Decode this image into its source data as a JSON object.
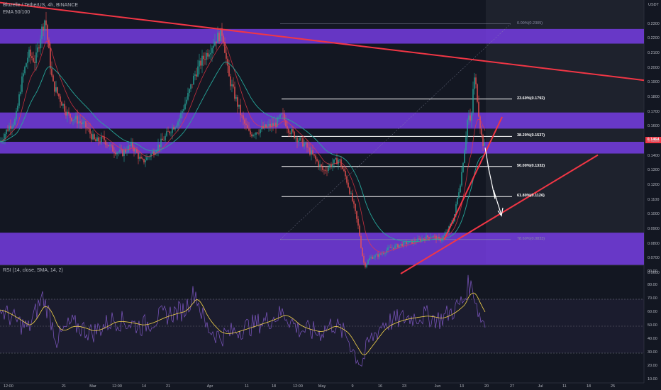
{
  "header": {
    "symbol_line": "Bluzelle / TetherUS, 4h, BINANCE",
    "indicator_line": "EMA 50/100",
    "currency": "USDT"
  },
  "price_tag": "0.1464",
  "rsi_legend": "RSI (14, close, SMA, 14, 2)",
  "colors": {
    "background": "#131722",
    "future_area": "#1e222d",
    "zone": "#7e3ff2",
    "trendline": "#f23645",
    "ema_fast": "#f23645",
    "ema_slow": "#26a69a",
    "rsi": "#7e57c2",
    "rsi_ma": "#f7d64a"
  },
  "chart_data": [
    {
      "type": "candlestick",
      "title": "Bluzelle / TetherUS, 4h, BINANCE",
      "ylim": [
        0.06,
        0.24
      ],
      "y_ticks": [
        "0.2300",
        "0.2200",
        "0.2100",
        "0.2000",
        "0.1900",
        "0.1800",
        "0.1700",
        "0.1600",
        "0.1500",
        "0.1400",
        "0.1300",
        "0.1200",
        "0.1100",
        "0.1000",
        "0.0900",
        "0.0800",
        "0.0700",
        "0.0600"
      ],
      "x_ticks": [
        "12:00",
        "21",
        "Mar",
        "12:00",
        "14",
        "21",
        "Apr",
        "11",
        "18",
        "12:00",
        "May",
        "9",
        "16",
        "23",
        "Jun",
        "13",
        "20",
        "27",
        "Jul",
        "11",
        "18",
        "25"
      ],
      "price_path": [
        [
          0,
          0.15
        ],
        [
          12,
          0.16
        ],
        [
          22,
          0.165
        ],
        [
          30,
          0.19
        ],
        [
          40,
          0.21
        ],
        [
          50,
          0.205
        ],
        [
          58,
          0.225
        ],
        [
          64,
          0.235
        ],
        [
          68,
          0.215
        ],
        [
          74,
          0.19
        ],
        [
          84,
          0.18
        ],
        [
          96,
          0.168
        ],
        [
          108,
          0.165
        ],
        [
          122,
          0.16
        ],
        [
          134,
          0.15
        ],
        [
          146,
          0.152
        ],
        [
          158,
          0.145
        ],
        [
          172,
          0.142
        ],
        [
          186,
          0.148
        ],
        [
          200,
          0.136
        ],
        [
          214,
          0.142
        ],
        [
          228,
          0.15
        ],
        [
          240,
          0.158
        ],
        [
          252,
          0.165
        ],
        [
          264,
          0.18
        ],
        [
          274,
          0.195
        ],
        [
          284,
          0.205
        ],
        [
          294,
          0.212
        ],
        [
          304,
          0.22
        ],
        [
          314,
          0.225
        ],
        [
          322,
          0.195
        ],
        [
          332,
          0.18
        ],
        [
          342,
          0.165
        ],
        [
          352,
          0.155
        ],
        [
          364,
          0.158
        ],
        [
          376,
          0.16
        ],
        [
          388,
          0.162
        ],
        [
          398,
          0.168
        ],
        [
          408,
          0.158
        ],
        [
          420,
          0.152
        ],
        [
          430,
          0.148
        ],
        [
          442,
          0.14
        ],
        [
          456,
          0.13
        ],
        [
          468,
          0.135
        ],
        [
          478,
          0.138
        ],
        [
          488,
          0.125
        ],
        [
          498,
          0.108
        ],
        [
          506,
          0.09
        ],
        [
          510,
          0.075
        ],
        [
          514,
          0.065
        ],
        [
          522,
          0.071
        ],
        [
          536,
          0.073
        ],
        [
          548,
          0.077
        ],
        [
          560,
          0.079
        ],
        [
          572,
          0.081
        ],
        [
          584,
          0.082
        ],
        [
          596,
          0.084
        ],
        [
          608,
          0.086
        ],
        [
          620,
          0.083
        ],
        [
          630,
          0.088
        ],
        [
          640,
          0.098
        ],
        [
          650,
          0.125
        ],
        [
          656,
          0.15
        ],
        [
          660,
          0.17
        ],
        [
          664,
          0.16
        ],
        [
          668,
          0.195
        ],
        [
          672,
          0.185
        ],
        [
          676,
          0.165
        ],
        [
          680,
          0.15
        ],
        [
          684,
          0.146
        ]
      ],
      "zones": [
        {
          "from": 0.217,
          "to": 0.227
        },
        {
          "from": 0.159,
          "to": 0.17
        },
        {
          "from": 0.142,
          "to": 0.15
        },
        {
          "from": 0.066,
          "to": 0.088
        }
      ],
      "fib_levels": [
        {
          "label": "0.00%(0.2305)",
          "value": 0.2305,
          "style": "dim"
        },
        {
          "label": "23.60%(0.1792)",
          "value": 0.1792,
          "style": "bold"
        },
        {
          "label": "38.20%(0.1537)",
          "value": 0.1537,
          "style": "bold"
        },
        {
          "label": "50.00%(0.1332)",
          "value": 0.1332,
          "style": "bold"
        },
        {
          "label": "61.80%(0.1126)",
          "value": 0.1126,
          "style": "bold"
        },
        {
          "label": "78.60%(0.0833)",
          "value": 0.0833,
          "style": "dim"
        }
      ],
      "current_price": 0.1464
    },
    {
      "type": "line",
      "title": "RSI (14, close, SMA, 14, 2)",
      "ylim": [
        10,
        90
      ],
      "y_ticks": [
        "90.00",
        "80.00",
        "70.00",
        "60.00",
        "50.00",
        "40.00",
        "30.00",
        "20.00",
        "10.00"
      ],
      "bands": [
        70,
        30
      ],
      "rsi_path": [
        [
          0,
          62
        ],
        [
          20,
          55
        ],
        [
          40,
          48
        ],
        [
          60,
          72
        ],
        [
          70,
          58
        ],
        [
          80,
          40
        ],
        [
          100,
          52
        ],
        [
          130,
          45
        ],
        [
          160,
          55
        ],
        [
          200,
          50
        ],
        [
          230,
          58
        ],
        [
          260,
          62
        ],
        [
          275,
          76
        ],
        [
          290,
          50
        ],
        [
          310,
          42
        ],
        [
          340,
          48
        ],
        [
          380,
          55
        ],
        [
          400,
          60
        ],
        [
          420,
          48
        ],
        [
          450,
          45
        ],
        [
          470,
          52
        ],
        [
          490,
          42
        ],
        [
          500,
          30
        ],
        [
          510,
          22
        ],
        [
          520,
          38
        ],
        [
          540,
          52
        ],
        [
          570,
          56
        ],
        [
          600,
          58
        ],
        [
          620,
          55
        ],
        [
          640,
          62
        ],
        [
          655,
          70
        ],
        [
          660,
          82
        ],
        [
          668,
          76
        ],
        [
          676,
          58
        ],
        [
          684,
          52
        ]
      ]
    }
  ]
}
